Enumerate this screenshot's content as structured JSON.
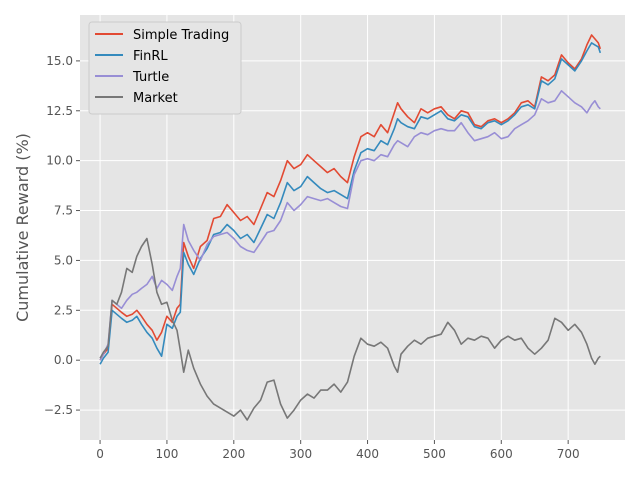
{
  "chart_data": {
    "type": "line",
    "title": "",
    "xlabel": "",
    "ylabel": "Cumulative Reward (%)",
    "xlim": [
      -30,
      785
    ],
    "ylim": [
      -4.0,
      17.3
    ],
    "xticks": [
      0,
      100,
      200,
      300,
      400,
      500,
      600,
      700
    ],
    "yticks": [
      -2.5,
      0.0,
      2.5,
      5.0,
      7.5,
      10.0,
      12.5,
      15.0
    ],
    "ytick_labels": [
      "−2.5",
      "0.0",
      "2.5",
      "5.0",
      "7.5",
      "10.0",
      "12.5",
      "15.0"
    ],
    "grid": true,
    "legend_position": "top-left",
    "colors": {
      "plot_bg": "#e5e5e5",
      "grid": "#ffffff",
      "tick_text": "#555555"
    },
    "series": [
      {
        "name": "Simple Trading",
        "color": "#e24a33",
        "x": [
          0,
          5,
          12,
          18,
          25,
          32,
          40,
          48,
          55,
          62,
          70,
          78,
          85,
          92,
          100,
          108,
          115,
          120,
          125,
          132,
          140,
          150,
          160,
          170,
          180,
          190,
          200,
          210,
          220,
          230,
          240,
          250,
          260,
          270,
          280,
          290,
          300,
          310,
          320,
          330,
          340,
          350,
          360,
          370,
          380,
          390,
          400,
          410,
          420,
          430,
          440,
          445,
          450,
          460,
          470,
          480,
          490,
          500,
          510,
          520,
          530,
          540,
          550,
          560,
          570,
          580,
          590,
          600,
          610,
          620,
          630,
          640,
          650,
          660,
          670,
          680,
          690,
          700,
          710,
          720,
          728,
          735,
          740,
          745,
          748
        ],
        "y": [
          0.0,
          0.3,
          0.6,
          2.8,
          2.6,
          2.4,
          2.2,
          2.3,
          2.5,
          2.2,
          1.8,
          1.5,
          1.0,
          1.4,
          2.2,
          1.9,
          2.6,
          2.8,
          5.9,
          5.2,
          4.6,
          5.7,
          6.0,
          7.1,
          7.2,
          7.8,
          7.4,
          7.0,
          7.2,
          6.8,
          7.6,
          8.4,
          8.2,
          9.0,
          10.0,
          9.6,
          9.8,
          10.3,
          10.0,
          9.7,
          9.4,
          9.6,
          9.2,
          8.9,
          10.2,
          11.2,
          11.4,
          11.2,
          11.8,
          11.4,
          12.4,
          12.9,
          12.6,
          12.2,
          11.9,
          12.6,
          12.4,
          12.6,
          12.7,
          12.3,
          12.1,
          12.5,
          12.4,
          11.8,
          11.7,
          12.0,
          12.1,
          11.9,
          12.1,
          12.4,
          12.9,
          13.0,
          12.7,
          14.2,
          14.0,
          14.3,
          15.3,
          14.9,
          14.6,
          15.1,
          15.8,
          16.3,
          16.1,
          15.9,
          15.6
        ]
      },
      {
        "name": "FinRL",
        "color": "#348abd",
        "x": [
          0,
          5,
          12,
          18,
          25,
          32,
          40,
          48,
          55,
          62,
          70,
          78,
          85,
          92,
          100,
          108,
          115,
          120,
          125,
          132,
          140,
          150,
          160,
          170,
          180,
          190,
          200,
          210,
          220,
          230,
          240,
          250,
          260,
          270,
          280,
          290,
          300,
          310,
          320,
          330,
          340,
          350,
          360,
          370,
          380,
          390,
          400,
          410,
          420,
          430,
          440,
          445,
          450,
          460,
          470,
          480,
          490,
          500,
          510,
          520,
          530,
          540,
          550,
          560,
          570,
          580,
          590,
          600,
          610,
          620,
          630,
          640,
          650,
          660,
          670,
          680,
          690,
          700,
          710,
          720,
          728,
          735,
          740,
          745,
          748
        ],
        "y": [
          -0.2,
          0.1,
          0.4,
          2.5,
          2.3,
          2.1,
          1.9,
          2.0,
          2.2,
          1.8,
          1.4,
          1.1,
          0.6,
          0.2,
          1.8,
          1.6,
          2.2,
          2.4,
          5.4,
          4.8,
          4.3,
          5.1,
          5.6,
          6.3,
          6.4,
          6.8,
          6.5,
          6.1,
          6.3,
          5.9,
          6.6,
          7.3,
          7.1,
          7.9,
          8.9,
          8.5,
          8.7,
          9.2,
          8.9,
          8.6,
          8.4,
          8.5,
          8.3,
          8.1,
          9.5,
          10.4,
          10.6,
          10.5,
          11.0,
          10.8,
          11.6,
          12.1,
          11.9,
          11.7,
          11.6,
          12.2,
          12.1,
          12.3,
          12.5,
          12.1,
          12.0,
          12.3,
          12.2,
          11.7,
          11.6,
          11.9,
          12.0,
          11.8,
          12.0,
          12.3,
          12.7,
          12.8,
          12.6,
          14.0,
          13.8,
          14.1,
          15.1,
          14.8,
          14.5,
          15.0,
          15.5,
          15.9,
          15.8,
          15.7,
          15.4
        ]
      },
      {
        "name": "Turtle",
        "color": "#988ed5",
        "x": [
          0,
          5,
          12,
          18,
          25,
          32,
          40,
          48,
          55,
          62,
          70,
          78,
          85,
          92,
          100,
          108,
          115,
          120,
          125,
          132,
          140,
          150,
          160,
          170,
          180,
          190,
          200,
          210,
          220,
          230,
          240,
          250,
          260,
          270,
          280,
          290,
          300,
          310,
          320,
          330,
          340,
          350,
          360,
          370,
          380,
          390,
          400,
          410,
          420,
          430,
          440,
          445,
          450,
          460,
          470,
          480,
          490,
          500,
          510,
          520,
          530,
          540,
          550,
          560,
          570,
          580,
          590,
          600,
          610,
          620,
          630,
          640,
          650,
          660,
          670,
          680,
          690,
          700,
          710,
          720,
          728,
          735,
          740,
          745,
          748
        ],
        "y": [
          0.0,
          0.3,
          0.8,
          3.0,
          2.8,
          2.6,
          3.0,
          3.3,
          3.4,
          3.6,
          3.8,
          4.2,
          3.6,
          4.0,
          3.8,
          3.5,
          4.2,
          4.6,
          6.8,
          6.0,
          5.5,
          5.0,
          5.8,
          6.2,
          6.3,
          6.4,
          6.1,
          5.7,
          5.5,
          5.4,
          5.9,
          6.4,
          6.5,
          7.0,
          7.9,
          7.5,
          7.8,
          8.2,
          8.1,
          8.0,
          8.1,
          7.9,
          7.7,
          7.6,
          9.3,
          10.0,
          10.1,
          10.0,
          10.3,
          10.2,
          10.8,
          11.0,
          10.9,
          10.7,
          11.2,
          11.4,
          11.3,
          11.5,
          11.6,
          11.5,
          11.5,
          11.9,
          11.4,
          11.0,
          11.1,
          11.2,
          11.4,
          11.1,
          11.2,
          11.6,
          11.8,
          12.0,
          12.3,
          13.1,
          12.9,
          13.0,
          13.5,
          13.2,
          12.9,
          12.7,
          12.4,
          12.8,
          13.0,
          12.7,
          12.6
        ]
      },
      {
        "name": "Market",
        "color": "#777777",
        "x": [
          0,
          5,
          12,
          18,
          25,
          32,
          40,
          48,
          55,
          62,
          70,
          78,
          85,
          92,
          100,
          108,
          115,
          120,
          125,
          132,
          140,
          150,
          160,
          170,
          180,
          190,
          200,
          210,
          220,
          230,
          240,
          250,
          260,
          270,
          280,
          290,
          300,
          310,
          320,
          330,
          340,
          350,
          360,
          370,
          380,
          390,
          400,
          410,
          420,
          430,
          440,
          445,
          450,
          460,
          470,
          480,
          490,
          500,
          510,
          520,
          530,
          540,
          550,
          560,
          570,
          580,
          590,
          600,
          610,
          620,
          630,
          640,
          650,
          660,
          670,
          680,
          690,
          700,
          710,
          720,
          728,
          735,
          740,
          745,
          748
        ],
        "y": [
          0.1,
          0.4,
          0.7,
          3.0,
          2.8,
          3.4,
          4.6,
          4.4,
          5.2,
          5.7,
          6.1,
          4.8,
          3.4,
          2.8,
          2.9,
          2.0,
          1.5,
          0.5,
          -0.6,
          0.5,
          -0.4,
          -1.2,
          -1.8,
          -2.2,
          -2.4,
          -2.6,
          -2.8,
          -2.5,
          -3.0,
          -2.4,
          -2.0,
          -1.1,
          -1.0,
          -2.2,
          -2.9,
          -2.5,
          -2.0,
          -1.7,
          -1.9,
          -1.5,
          -1.5,
          -1.2,
          -1.6,
          -1.1,
          0.2,
          1.1,
          0.8,
          0.7,
          0.9,
          0.6,
          -0.3,
          -0.6,
          0.3,
          0.7,
          1.0,
          0.8,
          1.1,
          1.2,
          1.3,
          1.9,
          1.5,
          0.8,
          1.1,
          1.0,
          1.2,
          1.1,
          0.6,
          1.0,
          1.2,
          1.0,
          1.1,
          0.6,
          0.3,
          0.6,
          1.0,
          2.1,
          1.9,
          1.5,
          1.8,
          1.4,
          0.8,
          0.1,
          -0.2,
          0.1,
          0.2
        ]
      }
    ]
  }
}
